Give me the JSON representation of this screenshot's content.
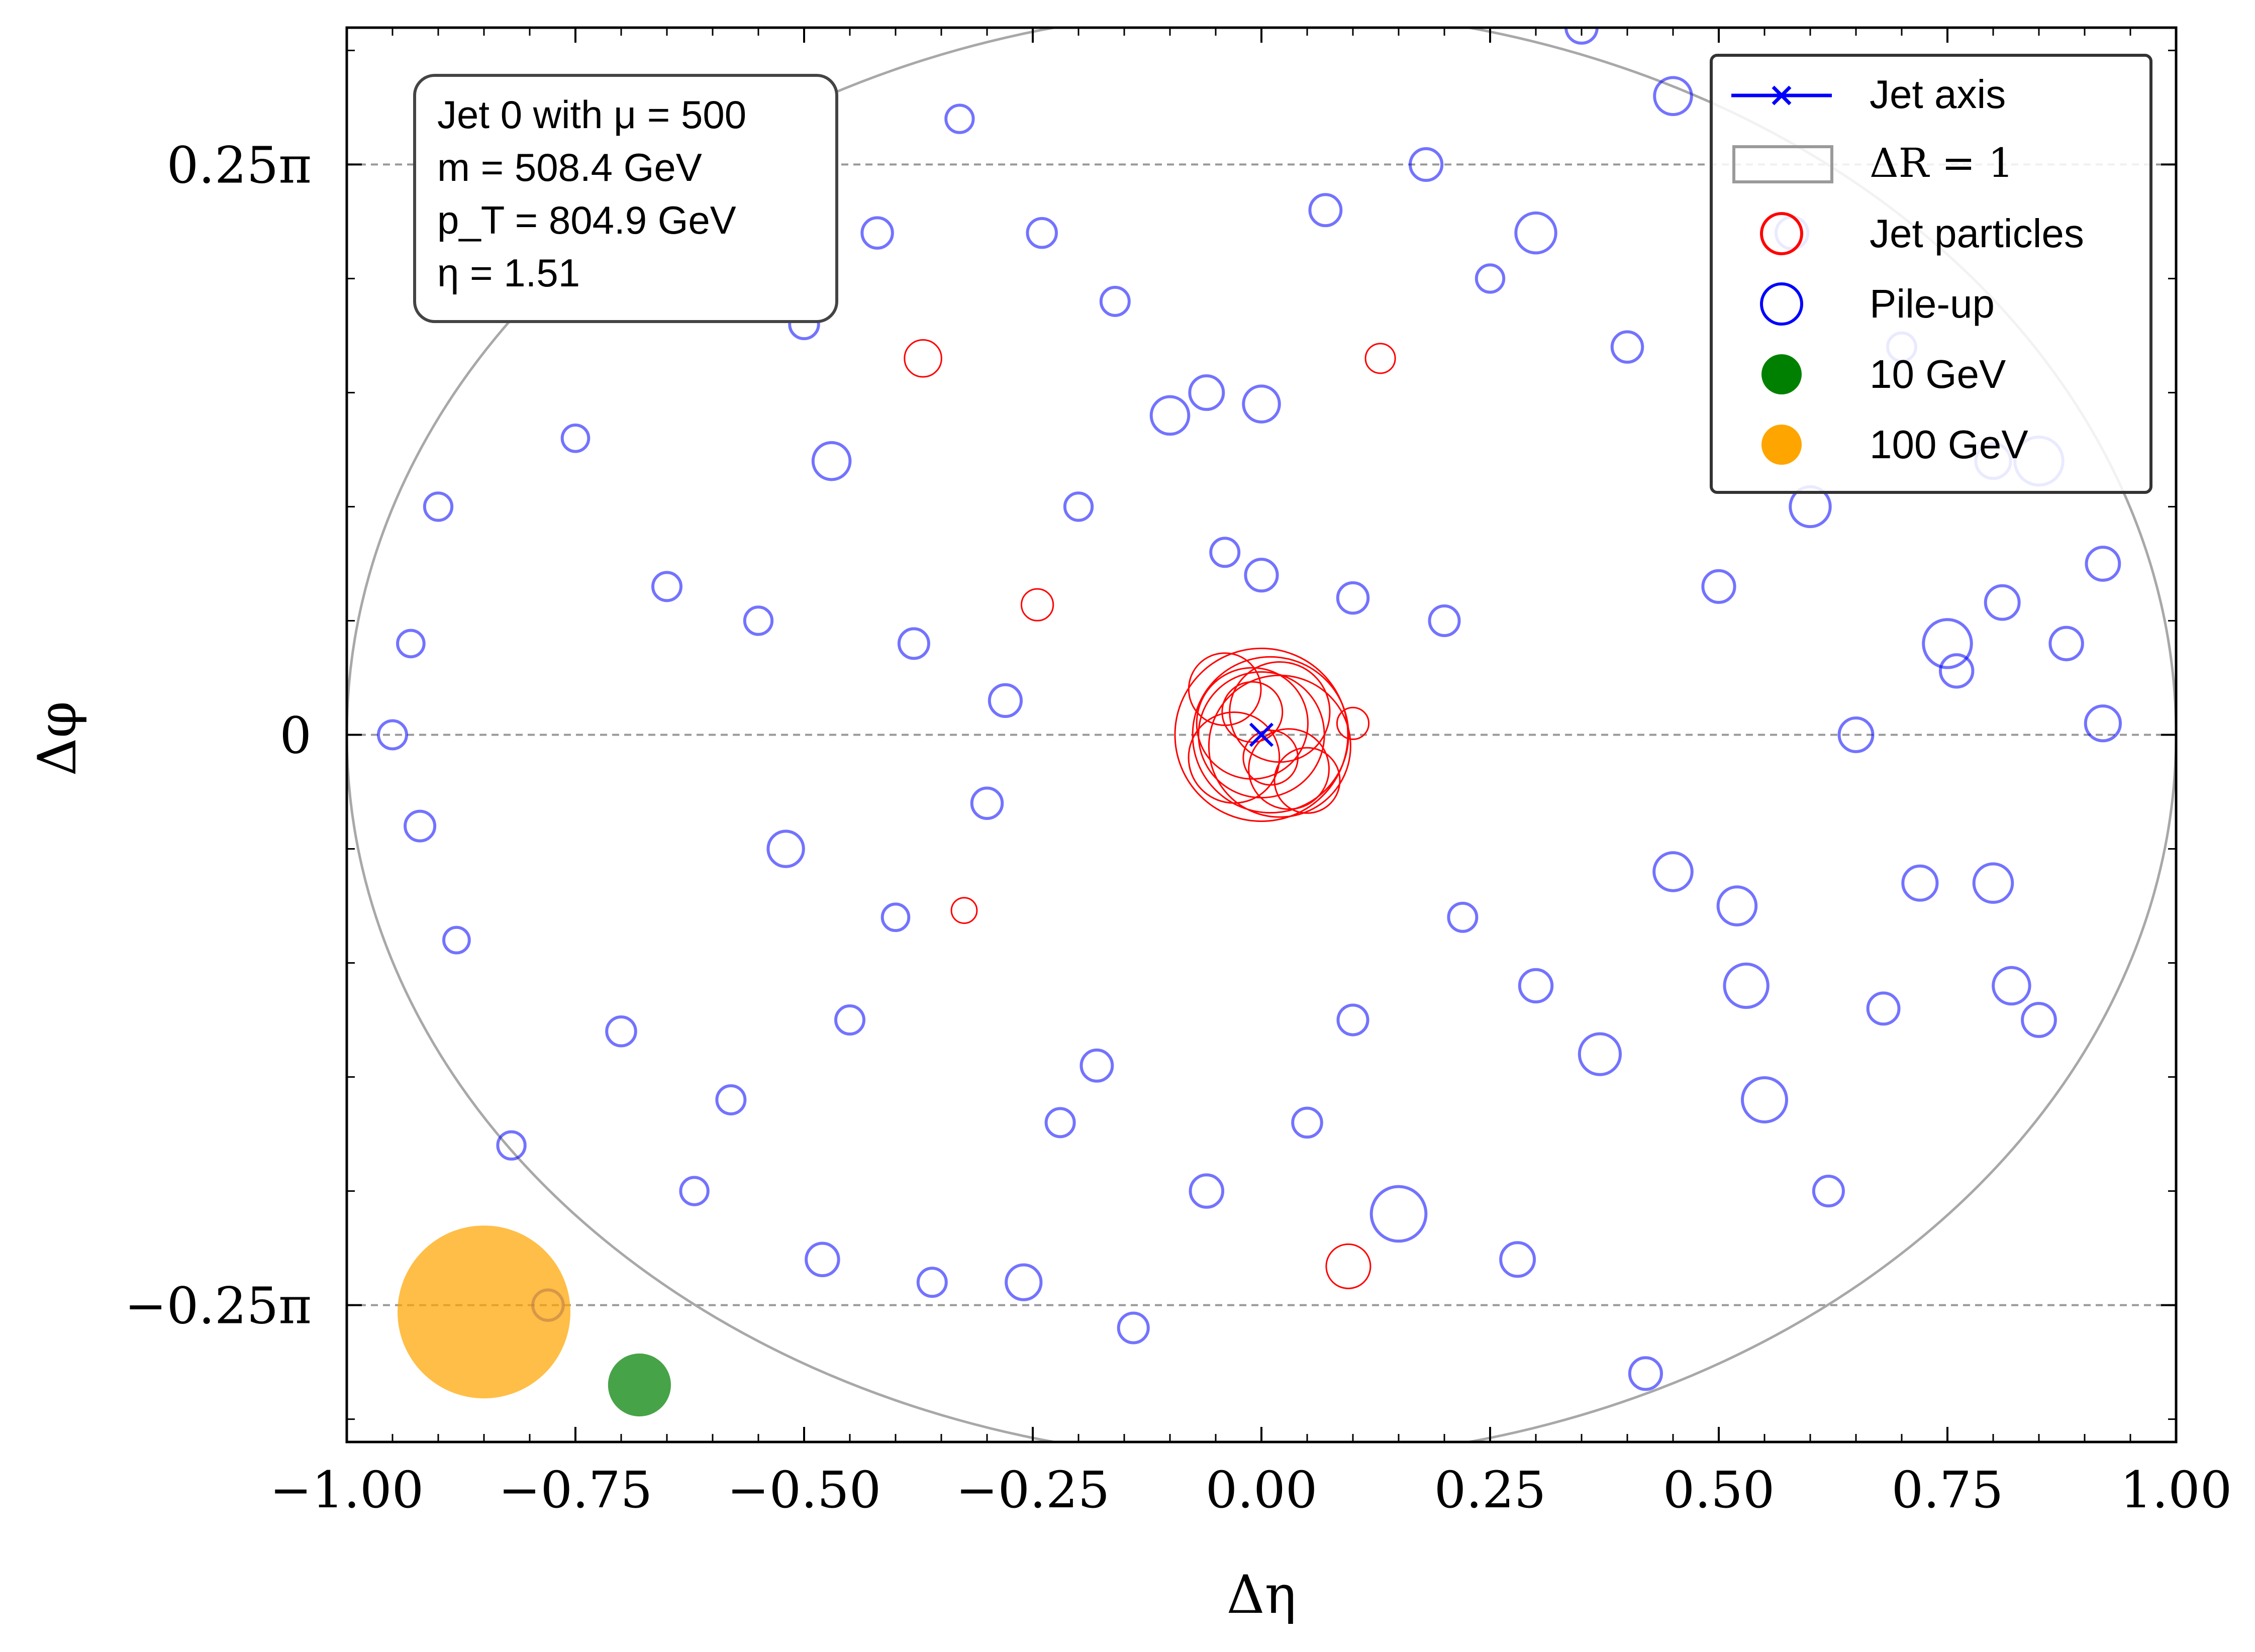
{
  "chart_data": {
    "type": "scatter",
    "xlabel": "Δη",
    "ylabel": "Δφ",
    "xlim": [
      -1.0,
      1.0
    ],
    "ylim_over_pi": [
      -0.31,
      0.31
    ],
    "grid": "dashed horizontal lines at y = 0.25π, 0, −0.25π",
    "x_ticks": [
      "−1.00",
      "−0.75",
      "−0.50",
      "−0.25",
      "0.00",
      "0.25",
      "0.50",
      "0.75",
      "1.00"
    ],
    "x_tick_values": [
      -1.0,
      -0.75,
      -0.5,
      -0.25,
      0.0,
      0.25,
      0.5,
      0.75,
      1.0
    ],
    "y_ticks": [
      "0.25π",
      "0",
      "−0.25π"
    ],
    "y_tick_values_over_pi": [
      0.25,
      0.0,
      -0.25
    ],
    "info_box": [
      "Jet 0 with μ = 500",
      "m = 508.4 GeV",
      "p_T = 804.9 GeV",
      "η = 1.51"
    ],
    "legend": {
      "placement": "top-right",
      "entries": [
        {
          "label": "Jet axis",
          "marker": "line-x",
          "color": "#0000ff"
        },
        {
          "label": "ΔR = 1",
          "marker": "box",
          "color": "#9a9a9a"
        },
        {
          "label": "Jet particles",
          "marker": "open-circle",
          "color": "#ff0000"
        },
        {
          "label": "Pile-up",
          "marker": "open-circle",
          "color": "#0000ff"
        },
        {
          "label": "10 GeV",
          "marker": "filled-circle",
          "color": "#008000"
        },
        {
          "label": "100 GeV",
          "marker": "filled-circle",
          "color": "#ffa500"
        }
      ]
    },
    "jet_axis": {
      "x": 0.0,
      "y_over_pi": 0.0
    },
    "delta_r_circle": {
      "center_x": 0.0,
      "center_y_over_pi": 0.0,
      "radius": 1.0
    },
    "reference_markers": [
      {
        "label": "100 GeV",
        "x": -0.85,
        "y_over_pi": -0.253,
        "pt_gev": 100,
        "color": "#ffa500"
      },
      {
        "label": "10 GeV",
        "x": -0.68,
        "y_over_pi": -0.285,
        "pt_gev": 10,
        "color": "#008000"
      }
    ],
    "jet_particles": [
      {
        "x": 0.0,
        "y_over_pi": 0.0,
        "pt_gev": 100
      },
      {
        "x": 0.01,
        "y_over_pi": 0.0,
        "pt_gev": 80
      },
      {
        "x": 0.02,
        "y_over_pi": -0.005,
        "pt_gev": 65
      },
      {
        "x": 0.0,
        "y_over_pi": 0.0,
        "pt_gev": 50
      },
      {
        "x": -0.01,
        "y_over_pi": 0.005,
        "pt_gev": 38
      },
      {
        "x": 0.02,
        "y_over_pi": 0.01,
        "pt_gev": 30
      },
      {
        "x": -0.03,
        "y_over_pi": -0.01,
        "pt_gev": 24
      },
      {
        "x": 0.03,
        "y_over_pi": -0.015,
        "pt_gev": 18
      },
      {
        "x": -0.04,
        "y_over_pi": 0.02,
        "pt_gev": 14
      },
      {
        "x": 0.05,
        "y_over_pi": -0.02,
        "pt_gev": 11
      },
      {
        "x": -0.01,
        "y_over_pi": 0.01,
        "pt_gev": 9
      },
      {
        "x": 0.01,
        "y_over_pi": -0.01,
        "pt_gev": 7
      },
      {
        "x": 0.1,
        "y_over_pi": 0.005,
        "pt_gev": 1.5
      },
      {
        "x": -0.37,
        "y_over_pi": 0.165,
        "pt_gev": 2.4
      },
      {
        "x": 0.13,
        "y_over_pi": 0.165,
        "pt_gev": 1.2
      },
      {
        "x": -0.245,
        "y_over_pi": 0.057,
        "pt_gev": 1.5
      },
      {
        "x": -0.325,
        "y_over_pi": -0.077,
        "pt_gev": 0.7
      },
      {
        "x": 0.095,
        "y_over_pi": -0.233,
        "pt_gev": 4.0
      }
    ],
    "pile_up_particles": [
      {
        "x": -0.95,
        "y_over_pi": 0.0,
        "pt_gev": 1.0
      },
      {
        "x": -0.93,
        "y_over_pi": 0.04,
        "pt_gev": 0.8
      },
      {
        "x": -0.92,
        "y_over_pi": -0.04,
        "pt_gev": 1.2
      },
      {
        "x": -0.9,
        "y_over_pi": 0.1,
        "pt_gev": 0.9
      },
      {
        "x": -0.88,
        "y_over_pi": -0.09,
        "pt_gev": 0.7
      },
      {
        "x": -0.85,
        "y_over_pi": 0.2,
        "pt_gev": 1.4
      },
      {
        "x": -0.82,
        "y_over_pi": -0.18,
        "pt_gev": 0.9
      },
      {
        "x": -0.8,
        "y_over_pi": 0.27,
        "pt_gev": 1.0
      },
      {
        "x": -0.78,
        "y_over_pi": -0.25,
        "pt_gev": 1.3
      },
      {
        "x": -0.75,
        "y_over_pi": 0.13,
        "pt_gev": 0.8
      },
      {
        "x": -0.7,
        "y_over_pi": -0.13,
        "pt_gev": 1.1
      },
      {
        "x": -0.68,
        "y_over_pi": 0.2,
        "pt_gev": 2.0
      },
      {
        "x": -0.65,
        "y_over_pi": 0.065,
        "pt_gev": 1.0
      },
      {
        "x": -0.62,
        "y_over_pi": -0.2,
        "pt_gev": 0.9
      },
      {
        "x": -0.6,
        "y_over_pi": 0.28,
        "pt_gev": 1.2
      },
      {
        "x": -0.58,
        "y_over_pi": -0.16,
        "pt_gev": 1.0
      },
      {
        "x": -0.55,
        "y_over_pi": 0.05,
        "pt_gev": 0.9
      },
      {
        "x": -0.52,
        "y_over_pi": -0.05,
        "pt_gev": 2.1
      },
      {
        "x": -0.5,
        "y_over_pi": 0.18,
        "pt_gev": 1.1
      },
      {
        "x": -0.48,
        "y_over_pi": -0.23,
        "pt_gev": 1.6
      },
      {
        "x": -0.47,
        "y_over_pi": 0.12,
        "pt_gev": 2.4
      },
      {
        "x": -0.45,
        "y_over_pi": -0.125,
        "pt_gev": 1.0
      },
      {
        "x": -0.42,
        "y_over_pi": 0.22,
        "pt_gev": 1.3
      },
      {
        "x": -0.4,
        "y_over_pi": -0.08,
        "pt_gev": 0.8
      },
      {
        "x": -0.38,
        "y_over_pi": 0.04,
        "pt_gev": 1.2
      },
      {
        "x": -0.36,
        "y_over_pi": -0.24,
        "pt_gev": 1.0
      },
      {
        "x": -0.33,
        "y_over_pi": 0.27,
        "pt_gev": 0.9
      },
      {
        "x": -0.3,
        "y_over_pi": -0.03,
        "pt_gev": 1.3
      },
      {
        "x": -0.28,
        "y_over_pi": 0.015,
        "pt_gev": 1.5
      },
      {
        "x": -0.26,
        "y_over_pi": -0.24,
        "pt_gev": 2.0
      },
      {
        "x": -0.24,
        "y_over_pi": 0.22,
        "pt_gev": 1.1
      },
      {
        "x": -0.22,
        "y_over_pi": -0.17,
        "pt_gev": 1.0
      },
      {
        "x": -0.2,
        "y_over_pi": 0.1,
        "pt_gev": 0.9
      },
      {
        "x": -0.18,
        "y_over_pi": -0.145,
        "pt_gev": 1.4
      },
      {
        "x": -0.16,
        "y_over_pi": 0.19,
        "pt_gev": 1.0
      },
      {
        "x": -0.14,
        "y_over_pi": -0.26,
        "pt_gev": 1.2
      },
      {
        "x": -0.1,
        "y_over_pi": 0.14,
        "pt_gev": 2.5
      },
      {
        "x": -0.06,
        "y_over_pi": -0.2,
        "pt_gev": 1.6
      },
      {
        "x": -0.06,
        "y_over_pi": 0.15,
        "pt_gev": 1.8
      },
      {
        "x": -0.04,
        "y_over_pi": 0.08,
        "pt_gev": 1.0
      },
      {
        "x": 0.0,
        "y_over_pi": 0.07,
        "pt_gev": 1.5
      },
      {
        "x": 0.0,
        "y_over_pi": 0.145,
        "pt_gev": 2.2
      },
      {
        "x": 0.05,
        "y_over_pi": -0.17,
        "pt_gev": 1.1
      },
      {
        "x": 0.07,
        "y_over_pi": 0.23,
        "pt_gev": 1.4
      },
      {
        "x": 0.1,
        "y_over_pi": 0.06,
        "pt_gev": 1.3
      },
      {
        "x": 0.1,
        "y_over_pi": -0.125,
        "pt_gev": 1.2
      },
      {
        "x": 0.15,
        "y_over_pi": -0.21,
        "pt_gev": 7.0
      },
      {
        "x": 0.18,
        "y_over_pi": 0.25,
        "pt_gev": 1.5
      },
      {
        "x": 0.2,
        "y_over_pi": 0.05,
        "pt_gev": 1.2
      },
      {
        "x": 0.22,
        "y_over_pi": -0.08,
        "pt_gev": 1.0
      },
      {
        "x": 0.25,
        "y_over_pi": 0.2,
        "pt_gev": 0.9
      },
      {
        "x": 0.28,
        "y_over_pi": -0.23,
        "pt_gev": 1.8
      },
      {
        "x": 0.3,
        "y_over_pi": 0.22,
        "pt_gev": 3.0
      },
      {
        "x": 0.3,
        "y_over_pi": -0.11,
        "pt_gev": 1.6
      },
      {
        "x": 0.35,
        "y_over_pi": 0.31,
        "pt_gev": 1.4
      },
      {
        "x": 0.37,
        "y_over_pi": -0.14,
        "pt_gev": 3.2
      },
      {
        "x": 0.4,
        "y_over_pi": 0.17,
        "pt_gev": 1.3
      },
      {
        "x": 0.42,
        "y_over_pi": -0.28,
        "pt_gev": 1.5
      },
      {
        "x": 0.45,
        "y_over_pi": 0.28,
        "pt_gev": 2.4
      },
      {
        "x": 0.45,
        "y_over_pi": -0.06,
        "pt_gev": 2.6
      },
      {
        "x": 0.5,
        "y_over_pi": 0.065,
        "pt_gev": 1.5
      },
      {
        "x": 0.52,
        "y_over_pi": -0.075,
        "pt_gev": 2.6
      },
      {
        "x": 0.53,
        "y_over_pi": -0.11,
        "pt_gev": 3.8
      },
      {
        "x": 0.55,
        "y_over_pi": -0.16,
        "pt_gev": 4.0
      },
      {
        "x": 0.58,
        "y_over_pi": 0.22,
        "pt_gev": 1.5
      },
      {
        "x": 0.6,
        "y_over_pi": 0.1,
        "pt_gev": 3.0
      },
      {
        "x": 0.62,
        "y_over_pi": -0.2,
        "pt_gev": 1.2
      },
      {
        "x": 0.65,
        "y_over_pi": 0.0,
        "pt_gev": 1.8
      },
      {
        "x": 0.68,
        "y_over_pi": -0.12,
        "pt_gev": 1.4
      },
      {
        "x": 0.7,
        "y_over_pi": 0.17,
        "pt_gev": 1.0
      },
      {
        "x": 0.72,
        "y_over_pi": -0.065,
        "pt_gev": 1.9
      },
      {
        "x": 0.75,
        "y_over_pi": 0.04,
        "pt_gev": 5.0
      },
      {
        "x": 0.76,
        "y_over_pi": 0.028,
        "pt_gev": 1.6
      },
      {
        "x": 0.8,
        "y_over_pi": 0.12,
        "pt_gev": 2.0
      },
      {
        "x": 0.8,
        "y_over_pi": -0.065,
        "pt_gev": 2.7
      },
      {
        "x": 0.81,
        "y_over_pi": 0.058,
        "pt_gev": 1.8
      },
      {
        "x": 0.82,
        "y_over_pi": -0.11,
        "pt_gev": 2.3
      },
      {
        "x": 0.85,
        "y_over_pi": 0.12,
        "pt_gev": 5.0
      },
      {
        "x": 0.85,
        "y_over_pi": -0.125,
        "pt_gev": 1.7
      },
      {
        "x": 0.88,
        "y_over_pi": 0.04,
        "pt_gev": 1.6
      },
      {
        "x": 0.92,
        "y_over_pi": 0.005,
        "pt_gev": 2.0
      },
      {
        "x": 0.92,
        "y_over_pi": 0.075,
        "pt_gev": 1.7
      }
    ]
  }
}
